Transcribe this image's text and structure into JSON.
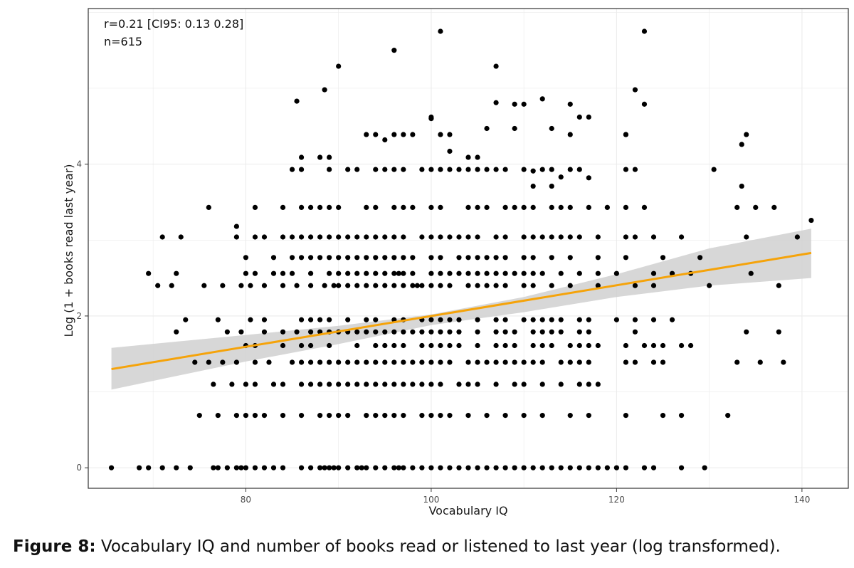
{
  "figure": {
    "label": "Figure 8:",
    "caption": "Vocabulary IQ and number of books read or listened to last year (log transformed)."
  },
  "chart_data": {
    "type": "scatter",
    "xlabel": "Vocabulary IQ",
    "ylabel": "Log (1 + books read last year)",
    "xlim": [
      63,
      145
    ],
    "ylim": [
      -0.27,
      6.05
    ],
    "x_ticks": [
      80,
      100,
      120,
      140
    ],
    "y_ticks": [
      0,
      2,
      4
    ],
    "grid": true,
    "annotations": [
      "r=0.21 [CI95: 0.13 0.28]",
      "n=615"
    ],
    "colors": {
      "points": "#000000",
      "fit_line": "#f5a30a",
      "ci_band": "#d0d0d0"
    },
    "fit_line": {
      "x": [
        65.5,
        141
      ],
      "y": [
        1.3,
        2.83
      ]
    },
    "ci_band": {
      "x": [
        65.5,
        80,
        90,
        100,
        110,
        120,
        130,
        141
      ],
      "upper": [
        1.58,
        1.75,
        1.87,
        2.02,
        2.25,
        2.55,
        2.89,
        3.15
      ],
      "lower": [
        1.03,
        1.4,
        1.63,
        1.88,
        2.05,
        2.25,
        2.4,
        2.5
      ]
    },
    "points": {
      "x": [
        65.5,
        68.5,
        69.5,
        71,
        72.5,
        74,
        76.5,
        77,
        78,
        79,
        79.5,
        80,
        81,
        82,
        83,
        84,
        86,
        87,
        88,
        88.5,
        89,
        89.5,
        90,
        91,
        92,
        92.5,
        93,
        94,
        95,
        96,
        96.5,
        97,
        98,
        99,
        100,
        101,
        102,
        103,
        104,
        105,
        106,
        107,
        108,
        109,
        110,
        111,
        112,
        113,
        114,
        115,
        116,
        117,
        118,
        119,
        120,
        121,
        123,
        124,
        127,
        129.5,
        75,
        77,
        79,
        80,
        81,
        82,
        84,
        86,
        88,
        89,
        90,
        91,
        93,
        94,
        95,
        96,
        97,
        99,
        100,
        101,
        102,
        104,
        106,
        108,
        110,
        112,
        115,
        117,
        121,
        125,
        127,
        132,
        76.5,
        78.5,
        80,
        81,
        83,
        84,
        86,
        87,
        88,
        89,
        90,
        91,
        92,
        93,
        94,
        95,
        96,
        97,
        98,
        99,
        100,
        101,
        103,
        104,
        105,
        107,
        109,
        110,
        112,
        114,
        116,
        117,
        118,
        74.5,
        76,
        77.5,
        79,
        81,
        82.5,
        85,
        86,
        87,
        88,
        89,
        90,
        91,
        92,
        93,
        94,
        95,
        96,
        97,
        98,
        99,
        100,
        101,
        102,
        104,
        105,
        106,
        107,
        108,
        109,
        110,
        111,
        112,
        114,
        115,
        116,
        117,
        121,
        122,
        124,
        125,
        133,
        135.5,
        138,
        72.5,
        78,
        79.5,
        82,
        84,
        85.5,
        87,
        88,
        89,
        90,
        91,
        92,
        93,
        94,
        95,
        96,
        97,
        98,
        99,
        100,
        101,
        102,
        103,
        105,
        107,
        108,
        109,
        111,
        112,
        113,
        114,
        116,
        117,
        122,
        134,
        137.5,
        70.5,
        72,
        75.5,
        77.5,
        79.5,
        80.5,
        82,
        84,
        85.5,
        87,
        88.5,
        89.5,
        90,
        91,
        92,
        93,
        94,
        95,
        96,
        97,
        98,
        98.5,
        99,
        100,
        101,
        102,
        104,
        105,
        106,
        107,
        108,
        110,
        111,
        113,
        115,
        118,
        122,
        124,
        130,
        137.5,
        69.5,
        72.5,
        80,
        81,
        83,
        84,
        85,
        87,
        89,
        90,
        91,
        92,
        93,
        94,
        95,
        96,
        96.5,
        97,
        98,
        100,
        101,
        102,
        103,
        104,
        105,
        106,
        107,
        108,
        109,
        110,
        111,
        112,
        114,
        116,
        118,
        120,
        124,
        126,
        128,
        134.5,
        71,
        73,
        79,
        81,
        82,
        84,
        85,
        86,
        87,
        88,
        89,
        90,
        91,
        92,
        93,
        94,
        95,
        96,
        97,
        99,
        100,
        101,
        102,
        103,
        104,
        105,
        107,
        108,
        110,
        111,
        112,
        113,
        114,
        115,
        116,
        118,
        121,
        122,
        124,
        127,
        134,
        139.5,
        141,
        79,
        80,
        83,
        85,
        86,
        87,
        88,
        89,
        90,
        91,
        92,
        93,
        94,
        95,
        96,
        97,
        98,
        100,
        101,
        103,
        104,
        105,
        106,
        107,
        108,
        110,
        111,
        113,
        115,
        118,
        121,
        125,
        129,
        80,
        81,
        84,
        86,
        87,
        89,
        92,
        94,
        95,
        96,
        97,
        99,
        100,
        101,
        102,
        103,
        105,
        107,
        108,
        109,
        111,
        112,
        113,
        115,
        116,
        117,
        118,
        121,
        123,
        124,
        125,
        127,
        128,
        73.5,
        77,
        80.5,
        82,
        86,
        87,
        88,
        89,
        91,
        93,
        94,
        96,
        97,
        99,
        100,
        101,
        102,
        103,
        105,
        107,
        108,
        110,
        111,
        112,
        113,
        114,
        116,
        117,
        120,
        122,
        124,
        126,
        76,
        81,
        84,
        86,
        87,
        88,
        89,
        90,
        93,
        94,
        96,
        97,
        98,
        100,
        101,
        104,
        105,
        106,
        108,
        109,
        110,
        111,
        113,
        114,
        115,
        117,
        119,
        121,
        123,
        133,
        135,
        137,
        85,
        86,
        89,
        91,
        92,
        94,
        95,
        96,
        97,
        99,
        100,
        101,
        102,
        103,
        104,
        105,
        106,
        107,
        108,
        110,
        112,
        113,
        115,
        116,
        121,
        122,
        130.5,
        133.5,
        134,
        86,
        88,
        89,
        93,
        94,
        96,
        97,
        100,
        101,
        102,
        104,
        106,
        107,
        109,
        110,
        111,
        112,
        113,
        115,
        117,
        121,
        122,
        123,
        85.5,
        88.5,
        90,
        95,
        96,
        98,
        100,
        101,
        102,
        105,
        107,
        109,
        111,
        113,
        114,
        115,
        116,
        117,
        121,
        123,
        133.5
      ],
      "y": [
        0,
        0,
        0,
        0,
        0,
        0,
        0,
        0,
        0,
        0,
        0,
        0,
        0,
        0,
        0,
        0,
        0,
        0,
        0,
        0,
        0,
        0,
        0,
        0,
        0,
        0,
        0,
        0,
        0,
        0,
        0,
        0,
        0,
        0,
        0,
        0,
        0,
        0,
        0,
        0,
        0,
        0,
        0,
        0,
        0,
        0,
        0,
        0,
        0,
        0,
        0,
        0,
        0,
        0,
        0,
        0,
        0,
        0,
        0,
        0,
        0.69,
        0.69,
        0.69,
        0.69,
        0.69,
        0.69,
        0.69,
        0.69,
        0.69,
        0.69,
        0.69,
        0.69,
        0.69,
        0.69,
        0.69,
        0.69,
        0.69,
        0.69,
        0.69,
        0.69,
        0.69,
        0.69,
        0.69,
        0.69,
        0.69,
        0.69,
        0.69,
        0.69,
        0.69,
        0.69,
        0.69,
        0.69,
        1.1,
        1.1,
        1.1,
        1.1,
        1.1,
        1.1,
        1.1,
        1.1,
        1.1,
        1.1,
        1.1,
        1.1,
        1.1,
        1.1,
        1.1,
        1.1,
        1.1,
        1.1,
        1.1,
        1.1,
        1.1,
        1.1,
        1.1,
        1.1,
        1.1,
        1.1,
        1.1,
        1.1,
        1.1,
        1.1,
        1.1,
        1.1,
        1.1,
        1.39,
        1.39,
        1.39,
        1.39,
        1.39,
        1.39,
        1.39,
        1.39,
        1.39,
        1.39,
        1.39,
        1.39,
        1.39,
        1.39,
        1.39,
        1.39,
        1.39,
        1.39,
        1.39,
        1.39,
        1.39,
        1.39,
        1.39,
        1.39,
        1.39,
        1.39,
        1.39,
        1.39,
        1.39,
        1.39,
        1.39,
        1.39,
        1.39,
        1.39,
        1.39,
        1.39,
        1.39,
        1.39,
        1.39,
        1.39,
        1.39,
        1.39,
        1.39,
        1.39,
        1.79,
        1.79,
        1.79,
        1.79,
        1.79,
        1.79,
        1.79,
        1.79,
        1.79,
        1.79,
        1.79,
        1.79,
        1.79,
        1.79,
        1.79,
        1.79,
        1.79,
        1.79,
        1.79,
        1.79,
        1.79,
        1.79,
        1.79,
        1.79,
        1.79,
        1.79,
        1.79,
        1.79,
        1.79,
        1.79,
        1.79,
        1.79,
        1.79,
        1.79,
        1.79,
        1.79,
        2.4,
        2.4,
        2.4,
        2.4,
        2.4,
        2.4,
        2.4,
        2.4,
        2.4,
        2.4,
        2.4,
        2.4,
        2.4,
        2.4,
        2.4,
        2.4,
        2.4,
        2.4,
        2.4,
        2.4,
        2.4,
        2.4,
        2.4,
        2.4,
        2.4,
        2.4,
        2.4,
        2.4,
        2.4,
        2.4,
        2.4,
        2.4,
        2.4,
        2.4,
        2.4,
        2.4,
        2.4,
        2.4,
        2.4,
        2.4,
        2.56,
        2.56,
        2.56,
        2.56,
        2.56,
        2.56,
        2.56,
        2.56,
        2.56,
        2.56,
        2.56,
        2.56,
        2.56,
        2.56,
        2.56,
        2.56,
        2.56,
        2.56,
        2.56,
        2.56,
        2.56,
        2.56,
        2.56,
        2.56,
        2.56,
        2.56,
        2.56,
        2.56,
        2.56,
        2.56,
        2.56,
        2.56,
        2.56,
        2.56,
        2.56,
        2.56,
        2.56,
        2.56,
        2.56,
        2.56,
        3.04,
        3.04,
        3.04,
        3.04,
        3.04,
        3.04,
        3.04,
        3.04,
        3.04,
        3.04,
        3.04,
        3.04,
        3.04,
        3.04,
        3.04,
        3.04,
        3.04,
        3.04,
        3.04,
        3.04,
        3.04,
        3.04,
        3.04,
        3.04,
        3.04,
        3.04,
        3.04,
        3.04,
        3.04,
        3.04,
        3.04,
        3.04,
        3.04,
        3.04,
        3.04,
        3.04,
        3.04,
        3.04,
        3.04,
        3.04,
        3.04,
        3.04,
        3.26,
        3.18,
        2.77,
        2.77,
        2.77,
        2.77,
        2.77,
        2.77,
        2.77,
        2.77,
        2.77,
        2.77,
        2.77,
        2.77,
        2.77,
        2.77,
        2.77,
        2.77,
        2.77,
        2.77,
        2.77,
        2.77,
        2.77,
        2.77,
        2.77,
        2.77,
        2.77,
        2.77,
        2.77,
        2.77,
        2.77,
        2.77,
        2.77,
        2.77,
        1.61,
        1.61,
        1.61,
        1.61,
        1.61,
        1.61,
        1.61,
        1.61,
        1.61,
        1.61,
        1.61,
        1.61,
        1.61,
        1.61,
        1.61,
        1.61,
        1.61,
        1.61,
        1.61,
        1.61,
        1.61,
        1.61,
        1.61,
        1.61,
        1.61,
        1.61,
        1.61,
        1.61,
        1.61,
        1.61,
        1.61,
        1.61,
        1.61,
        1.95,
        1.95,
        1.95,
        1.95,
        1.95,
        1.95,
        1.95,
        1.95,
        1.95,
        1.95,
        1.95,
        1.95,
        1.95,
        1.95,
        1.95,
        1.95,
        1.95,
        1.95,
        1.95,
        1.95,
        1.95,
        1.95,
        1.95,
        1.95,
        1.95,
        1.95,
        1.95,
        1.95,
        1.95,
        1.95,
        1.95,
        1.95,
        3.43,
        3.43,
        3.43,
        3.43,
        3.43,
        3.43,
        3.43,
        3.43,
        3.43,
        3.43,
        3.43,
        3.43,
        3.43,
        3.43,
        3.43,
        3.43,
        3.43,
        3.43,
        3.43,
        3.43,
        3.43,
        3.43,
        3.43,
        3.43,
        3.43,
        3.43,
        3.43,
        3.43,
        3.43,
        3.43,
        3.43,
        3.43,
        3.93,
        3.93,
        3.93,
        3.93,
        3.93,
        3.93,
        3.93,
        3.93,
        3.93,
        3.93,
        3.93,
        3.93,
        3.93,
        3.93,
        3.93,
        3.93,
        3.93,
        3.93,
        3.93,
        3.93,
        3.93,
        3.93,
        3.93,
        3.93,
        3.93,
        3.93,
        3.93,
        4.26,
        4.39,
        4.09,
        4.09,
        4.09,
        4.39,
        4.39,
        4.39,
        4.39,
        4.62,
        4.39,
        4.39,
        4.09,
        4.47,
        4.81,
        4.47,
        4.79,
        3.91,
        4.86,
        4.47,
        4.79,
        4.62,
        4.39,
        4.98,
        4.79,
        4.83,
        4.98,
        5.29,
        4.32,
        5.5,
        4.39,
        4.6,
        5.75,
        4.17,
        4.09,
        5.29,
        4.79,
        3.71,
        3.71,
        3.83,
        4.39,
        4.62,
        3.82,
        4.39,
        5.75,
        3.71
      ]
    }
  }
}
